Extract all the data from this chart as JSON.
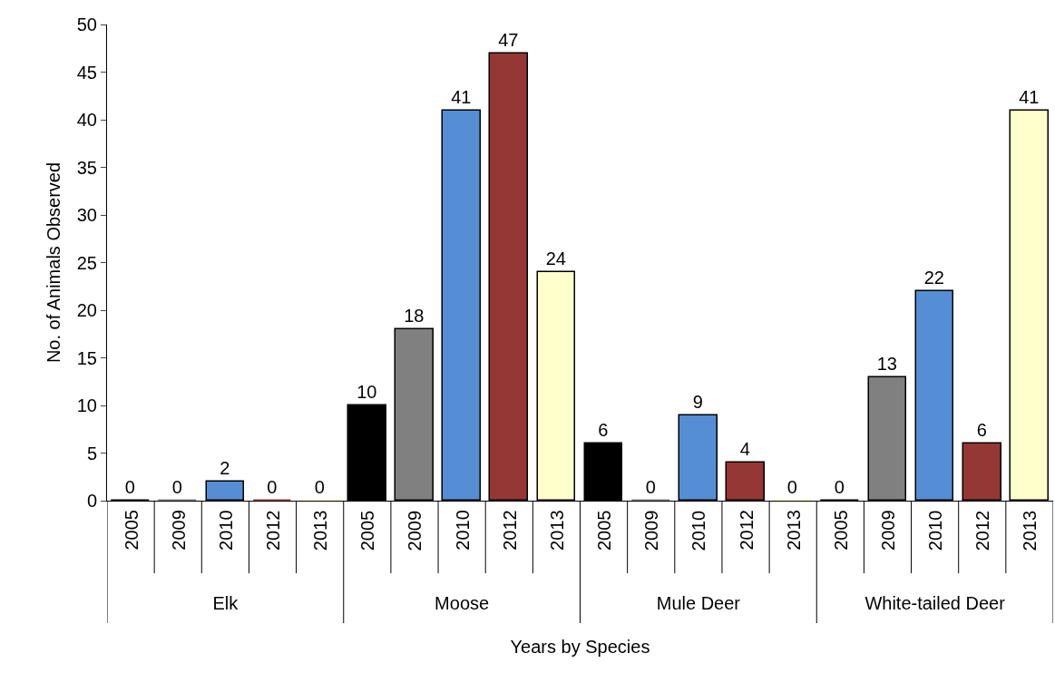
{
  "chart_data": {
    "type": "bar",
    "xlabel": "Years by Species",
    "ylabel": "No. of Animals Observed",
    "categories": [
      "Elk",
      "Moose",
      "Mule Deer",
      "White-tailed Deer"
    ],
    "series": [
      {
        "name": "2005",
        "color": "#000000",
        "values": [
          0,
          10,
          6,
          0
        ]
      },
      {
        "name": "2009",
        "color": "#808080",
        "values": [
          0,
          18,
          0,
          13
        ]
      },
      {
        "name": "2010",
        "color": "#558ed5",
        "values": [
          2,
          41,
          9,
          22
        ]
      },
      {
        "name": "2012",
        "color": "#953735",
        "values": [
          0,
          47,
          4,
          6
        ]
      },
      {
        "name": "2013",
        "color": "#ffffcc",
        "values": [
          0,
          24,
          0,
          41
        ]
      }
    ],
    "ylim": [
      0,
      50
    ],
    "yticks": [
      0,
      5,
      10,
      15,
      20,
      25,
      30,
      35,
      40,
      45,
      50
    ],
    "data_labels": true
  }
}
